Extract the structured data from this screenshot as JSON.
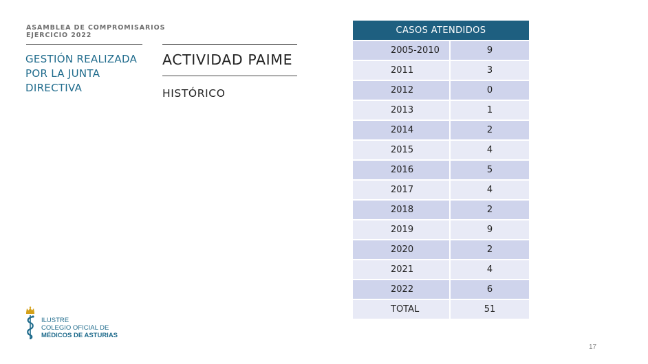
{
  "header": {
    "eyebrow_line1": "ASAMBLEA DE COMPROMISARIOS",
    "eyebrow_line2": "EJERCICIO 2022"
  },
  "section": {
    "line1": "GESTIÓN REALIZADA",
    "line2": "POR LA JUNTA",
    "line3": "DIRECTIVA"
  },
  "main": {
    "title": "ACTIVIDAD PAIME",
    "subtitle": "HISTÓRICO"
  },
  "table": {
    "header": "CASOS ATENDIDOS",
    "rows": [
      {
        "year": "2005-2010",
        "count": "9"
      },
      {
        "year": "2011",
        "count": "3"
      },
      {
        "year": "2012",
        "count": "0"
      },
      {
        "year": "2013",
        "count": "1"
      },
      {
        "year": "2014",
        "count": "2"
      },
      {
        "year": "2015",
        "count": "4"
      },
      {
        "year": "2016",
        "count": "5"
      },
      {
        "year": "2017",
        "count": "4"
      },
      {
        "year": "2018",
        "count": "2"
      },
      {
        "year": "2019",
        "count": "9"
      },
      {
        "year": "2020",
        "count": "2"
      },
      {
        "year": "2021",
        "count": "4"
      },
      {
        "year": "2022",
        "count": "6"
      },
      {
        "year": "TOTAL",
        "count": "51"
      }
    ]
  },
  "logo": {
    "line1": "ILUSTRE",
    "line2": "COLEGIO OFICIAL DE",
    "line3": "MÉDICOS DE ASTURIAS",
    "icon": "crown-serpent-staff-icon"
  },
  "footer": {
    "page_number": "17"
  },
  "colors": {
    "accent": "#1f6b8c",
    "table_header": "#1e5f80",
    "row_dark": "#cfd4ec",
    "row_light": "#e8eaf6",
    "crown": "#d4a019"
  }
}
